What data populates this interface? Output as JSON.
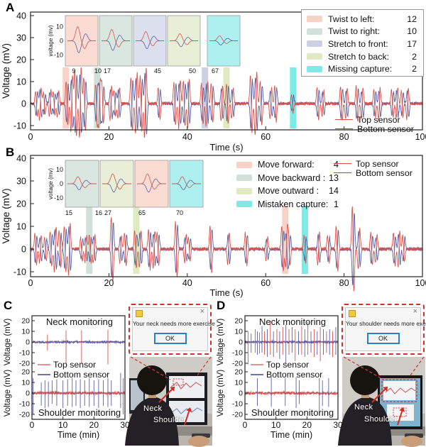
{
  "colors": {
    "top_sensor": "#d9534a",
    "bottom_sensor": "#5a5fa8",
    "frame": "#222222",
    "popup_border": "#cc3330",
    "band_salmon": "#f8d2c6",
    "band_teal": "#cfe1d9",
    "band_lavender": "#cbd0e3",
    "band_green": "#dfe9c2",
    "band_cyan": "#7cebe8"
  },
  "chart_data": [
    {
      "id": "A",
      "label": "A",
      "type": "line",
      "xlabel": "Time (s)",
      "ylabel": "Voltage (mV)",
      "xlim": [
        0,
        100
      ],
      "ylim": [
        -12,
        42
      ],
      "xticks": [
        0,
        20,
        40,
        60,
        80,
        100
      ],
      "yticks": [
        40,
        30,
        20,
        10,
        0,
        -10
      ],
      "series": [
        {
          "name": "Top sensor",
          "color": "#d9534a"
        },
        {
          "name": "Bottom sensor",
          "color": "#5a5fa8"
        }
      ],
      "event_counts": [
        {
          "label": "Twist to left:",
          "value": "12",
          "color": "#f8d2c6"
        },
        {
          "label": "Twist to right:",
          "value": "10",
          "color": "#cfe1d9"
        },
        {
          "label": "Stretch to front:",
          "value": "17",
          "color": "#cbd0e3"
        },
        {
          "label": "Stretch to back:",
          "value": "2",
          "color": "#dfe9c2"
        },
        {
          "label": "Missing capture:",
          "value": "2",
          "color": "#7cebe8"
        }
      ],
      "bands": [
        {
          "x": 9,
          "color": "#f8d2c6"
        },
        {
          "x": 17,
          "color": "#cfe1d9"
        },
        {
          "x": 44.5,
          "color": "#cbd0e3"
        },
        {
          "x": 50,
          "color": "#dfe9c2"
        },
        {
          "x": 67,
          "color": "#7cebe8"
        }
      ],
      "inset": {
        "ylabel": "voltage (mv)",
        "yticks": [
          10,
          0,
          -10
        ],
        "xlabels": [
          "9",
          "10",
          "17",
          "45",
          "50",
          "67"
        ],
        "cells": [
          {
            "fill": "#fadcd3",
            "amp": 10
          },
          {
            "fill": "#d9e7e0",
            "amp": 8
          },
          {
            "fill": "#dcdfee",
            "amp": 6.5
          },
          {
            "fill": "#e9efd6",
            "amp": 5
          },
          {
            "fill": "#adf0ef",
            "amp": 3.5
          }
        ]
      },
      "events": [
        [
          1.5,
          6
        ],
        [
          2.5,
          -7
        ],
        [
          3.5,
          5
        ],
        [
          5,
          -6
        ],
        [
          6,
          5
        ],
        [
          7,
          -6
        ],
        [
          9.3,
          10
        ],
        [
          10.5,
          -13
        ],
        [
          11.5,
          15
        ],
        [
          12.7,
          -16
        ],
        [
          13.8,
          12
        ],
        [
          16.8,
          9
        ],
        [
          17.6,
          -10
        ],
        [
          18.4,
          9
        ],
        [
          20.5,
          -8
        ],
        [
          21.5,
          6
        ],
        [
          22.5,
          -7
        ],
        [
          25.8,
          12
        ],
        [
          27,
          -14
        ],
        [
          28.2,
          13
        ],
        [
          29.3,
          -16
        ],
        [
          32.8,
          7
        ],
        [
          36.8,
          10
        ],
        [
          38,
          -11
        ],
        [
          39.2,
          10
        ],
        [
          40.3,
          -11
        ],
        [
          43.8,
          9
        ],
        [
          45,
          -10
        ],
        [
          46.3,
          9
        ],
        [
          48.8,
          -8
        ],
        [
          50.2,
          9
        ],
        [
          51.5,
          -7
        ],
        [
          56.3,
          13
        ],
        [
          57.5,
          -14
        ],
        [
          58.8,
          10
        ],
        [
          61.3,
          -7
        ],
        [
          62.5,
          8
        ],
        [
          66.8,
          4
        ],
        [
          73.3,
          7
        ],
        [
          74.6,
          -6
        ],
        [
          79.3,
          8
        ],
        [
          80.6,
          -7
        ],
        [
          83.3,
          8
        ],
        [
          84.6,
          -7
        ],
        [
          87.8,
          6
        ],
        [
          89,
          -7
        ],
        [
          92.3,
          6
        ],
        [
          93.5,
          -7
        ],
        [
          94.8,
          6
        ],
        [
          96.2,
          -7
        ]
      ]
    },
    {
      "id": "B",
      "label": "B",
      "type": "line",
      "xlabel": "Time (s)",
      "ylabel": "Voltage (mV)",
      "xlim": [
        0,
        100
      ],
      "ylim": [
        -14,
        42
      ],
      "xticks": [
        0,
        20,
        40,
        60,
        80,
        100
      ],
      "yticks": [
        40,
        30,
        20,
        10,
        0,
        -10
      ],
      "series": [
        {
          "name": "Top sensor",
          "color": "#d9534a"
        },
        {
          "name": "Bottom sensor",
          "color": "#5a5fa8"
        }
      ],
      "event_counts": [
        {
          "label": "Move forward:",
          "value": "4",
          "color": "#f8d2c6"
        },
        {
          "label": "Move backward :",
          "value": "13",
          "color": "#cfe1d9"
        },
        {
          "label": "Move outward :",
          "value": "14",
          "color": "#dfe9c2"
        },
        {
          "label": "Mistaken capture:",
          "value": "1",
          "color": "#7cebe8"
        }
      ],
      "bands": [
        {
          "x": 15,
          "color": "#cfe1d9"
        },
        {
          "x": 27,
          "color": "#dfe9c2"
        },
        {
          "x": 65,
          "color": "#f8d2c6"
        },
        {
          "x": 70,
          "color": "#7cebe8"
        }
      ],
      "inset": {
        "ylabel": "voltage (mv)",
        "yticks": [
          10,
          0,
          -10
        ],
        "xlabels": [
          "15",
          "16",
          "27",
          "65",
          "70"
        ],
        "cells": [
          {
            "fill": "#d9e7e0",
            "amp": 5
          },
          {
            "fill": "#e9efd6",
            "amp": 7
          },
          {
            "fill": "#fadcd3",
            "amp": 7
          },
          {
            "fill": "#adf0ef",
            "amp": 5
          }
        ]
      },
      "events": [
        [
          1.3,
          7
        ],
        [
          2.5,
          -6
        ],
        [
          3.8,
          5
        ],
        [
          5.2,
          8
        ],
        [
          6.3,
          -10
        ],
        [
          7.5,
          8
        ],
        [
          8.8,
          10
        ],
        [
          9.9,
          -11
        ],
        [
          13,
          5
        ],
        [
          14.1,
          -6
        ],
        [
          15.2,
          6
        ],
        [
          16.2,
          -6
        ],
        [
          20.8,
          14
        ],
        [
          23,
          -6
        ],
        [
          24.2,
          7
        ],
        [
          26.8,
          8
        ],
        [
          28,
          -8
        ],
        [
          30.3,
          9
        ],
        [
          31.5,
          -8
        ],
        [
          32.5,
          7
        ],
        [
          37.2,
          12
        ],
        [
          39.5,
          -6
        ],
        [
          40.5,
          5
        ],
        [
          46,
          10
        ],
        [
          50.5,
          -7
        ],
        [
          55,
          7
        ],
        [
          60.3,
          -5
        ],
        [
          64.3,
          10
        ],
        [
          65.3,
          -8
        ],
        [
          66,
          7
        ],
        [
          70,
          6
        ],
        [
          73.5,
          -7
        ],
        [
          76,
          6
        ],
        [
          78.2,
          10
        ],
        [
          82.3,
          19
        ],
        [
          83.8,
          -9
        ],
        [
          87,
          7
        ],
        [
          88.2,
          -6
        ],
        [
          92.8,
          7
        ],
        [
          94,
          -8
        ],
        [
          95.2,
          6
        ]
      ]
    },
    {
      "id": "C",
      "label": "C",
      "type": "line",
      "xlabel": "Time (min)",
      "ylabel": "Voltage (mV)",
      "xlim": [
        0,
        30
      ],
      "ylim": [
        -25,
        25
      ],
      "xticks": [
        0,
        10,
        20,
        30
      ],
      "yticks": [
        20,
        10,
        0,
        -10,
        -20
      ],
      "neck_title": "Neck monitoring",
      "shoulder_title": "Shoulder monitoring",
      "series": [
        {
          "name": "Top sensor",
          "color": "#d9534a"
        },
        {
          "name": "Bottom sensor",
          "color": "#5a5fa8"
        }
      ],
      "neck_spikes": [
        [
          5,
          7,
          -8
        ],
        [
          11,
          11,
          -21
        ],
        [
          16,
          11,
          -21
        ],
        [
          24.5,
          11.5,
          -21
        ]
      ],
      "neck_alt": false,
      "shoulder_spikes": [
        [
          0.4,
          14,
          -20
        ],
        [
          3,
          10,
          -12
        ],
        [
          4.2,
          12,
          -14
        ],
        [
          5.3,
          11,
          -13
        ],
        [
          6.5,
          12,
          -10
        ],
        [
          8,
          13,
          -12
        ],
        [
          10,
          12,
          -14
        ],
        [
          11.5,
          13,
          -12
        ],
        [
          13,
          14,
          -13
        ],
        [
          14.2,
          12,
          -12
        ],
        [
          15.6,
          13,
          -14
        ],
        [
          17,
          12,
          -12
        ],
        [
          18.5,
          14,
          -13
        ],
        [
          20,
          12,
          -12
        ],
        [
          21.5,
          13,
          -14
        ],
        [
          23,
          12,
          -12
        ],
        [
          24.5,
          14,
          -13
        ],
        [
          25.6,
          12,
          -12
        ],
        [
          28.6,
          19,
          -14
        ],
        [
          29.4,
          14,
          -20
        ]
      ],
      "shoulder_spike_color": "bottom",
      "popup": {
        "message": "Your neck needs more exercise",
        "ok_label": "OK",
        "close_glyph": "×"
      },
      "photo": {
        "variant": "c",
        "neck_label": "Neck",
        "shoulder_label": "Shoulder"
      }
    },
    {
      "id": "D",
      "label": "D",
      "type": "line",
      "xlabel": "Time (min)",
      "ylabel": "Voltage (mV)",
      "xlim": [
        0,
        30
      ],
      "ylim": [
        -25,
        25
      ],
      "xticks": [
        0,
        10,
        20,
        30
      ],
      "yticks": [
        20,
        10,
        0,
        -10,
        -20
      ],
      "neck_title": "Neck monitoring",
      "shoulder_title": "Shoulder monitoring",
      "series": [
        {
          "name": "Top sensor",
          "color": "#d9534a"
        },
        {
          "name": "Bottom sensor",
          "color": "#5a5fa8"
        }
      ],
      "neck_spikes": [
        [
          1,
          10,
          -21
        ],
        [
          2,
          8,
          -10
        ],
        [
          3.3,
          12,
          -10
        ],
        [
          4,
          10,
          -12
        ],
        [
          4.7,
          9,
          -11
        ],
        [
          5.5,
          15,
          -10
        ],
        [
          6.3,
          10,
          -12
        ],
        [
          7.2,
          12,
          -14
        ],
        [
          8.2,
          20,
          -12
        ],
        [
          9.2,
          10,
          -14
        ],
        [
          10.3,
          12,
          -10
        ],
        [
          11.2,
          10,
          -16
        ],
        [
          12.2,
          14,
          -12
        ],
        [
          13.2,
          16,
          -21
        ],
        [
          14.2,
          12,
          -12
        ],
        [
          15.2,
          14,
          -10
        ],
        [
          16.2,
          12,
          -18
        ],
        [
          17.3,
          10,
          -12
        ],
        [
          18.3,
          15,
          -12
        ],
        [
          19.3,
          12,
          -14
        ],
        [
          20.3,
          19,
          -12
        ],
        [
          21.3,
          10,
          -10
        ],
        [
          22.3,
          12,
          -14
        ],
        [
          23.3,
          10,
          -12
        ],
        [
          24.3,
          14,
          -18
        ],
        [
          25.3,
          12,
          -12
        ],
        [
          26.3,
          10,
          -10
        ],
        [
          27.3,
          12,
          -12
        ],
        [
          28.3,
          10,
          -14
        ],
        [
          29.3,
          14,
          -12
        ]
      ],
      "neck_alt": true,
      "shoulder_spikes": [
        [
          4,
          14,
          -12
        ],
        [
          8.5,
          15,
          -13
        ],
        [
          13,
          14,
          -12
        ],
        [
          16.5,
          15,
          -14
        ],
        [
          17.5,
          12,
          -10
        ],
        [
          24,
          14,
          -21
        ],
        [
          25,
          12,
          -12
        ],
        [
          27,
          14,
          -13
        ]
      ],
      "shoulder_spike_color": "bottom",
      "popup": {
        "message": "Your shoulder needs more exercise",
        "ok_label": "OK",
        "close_glyph": "×"
      },
      "photo": {
        "variant": "d",
        "neck_label": "Neck",
        "shoulder_label": "Shoulder"
      }
    }
  ]
}
